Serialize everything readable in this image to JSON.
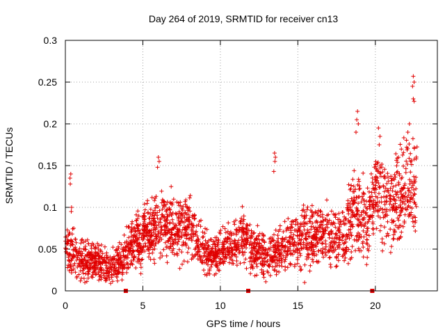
{
  "chart_data": {
    "type": "scatter",
    "title": "Day 264 of 2019, SRMTID for receiver cn13",
    "xlabel": "GPS time / hours",
    "ylabel": "SRMTID / TECUs",
    "xlim": [
      0,
      24
    ],
    "ylim": [
      0,
      0.3
    ],
    "x_ticks": [
      0,
      5,
      10,
      15,
      20
    ],
    "x_tick_labels": [
      "0",
      "5",
      "10",
      "15",
      "20"
    ],
    "y_ticks": [
      0,
      0.05,
      0.1,
      0.15,
      0.2,
      0.25,
      0.3
    ],
    "y_tick_labels": [
      "0",
      "0.05",
      "0.1",
      "0.15",
      "0.2",
      "0.25",
      "0.3"
    ],
    "grid": true,
    "marker": "plus",
    "color": "#e00000",
    "zero_markers_x": [
      3.9,
      11.8,
      19.8
    ],
    "trend": [
      {
        "x": 0.0,
        "y": 0.045,
        "spread": 0.012
      },
      {
        "x": 0.3,
        "y": 0.05,
        "spread": 0.015
      },
      {
        "x": 1.0,
        "y": 0.04,
        "spread": 0.012
      },
      {
        "x": 2.0,
        "y": 0.035,
        "spread": 0.011
      },
      {
        "x": 3.0,
        "y": 0.025,
        "spread": 0.009
      },
      {
        "x": 3.5,
        "y": 0.035,
        "spread": 0.012
      },
      {
        "x": 4.5,
        "y": 0.06,
        "spread": 0.015
      },
      {
        "x": 5.5,
        "y": 0.07,
        "spread": 0.018
      },
      {
        "x": 6.0,
        "y": 0.085,
        "spread": 0.02
      },
      {
        "x": 7.0,
        "y": 0.075,
        "spread": 0.018
      },
      {
        "x": 8.0,
        "y": 0.075,
        "spread": 0.017
      },
      {
        "x": 9.0,
        "y": 0.05,
        "spread": 0.014
      },
      {
        "x": 9.5,
        "y": 0.04,
        "spread": 0.01
      },
      {
        "x": 10.5,
        "y": 0.055,
        "spread": 0.013
      },
      {
        "x": 11.5,
        "y": 0.065,
        "spread": 0.015
      },
      {
        "x": 12.0,
        "y": 0.05,
        "spread": 0.013
      },
      {
        "x": 13.0,
        "y": 0.04,
        "spread": 0.012
      },
      {
        "x": 14.0,
        "y": 0.05,
        "spread": 0.014
      },
      {
        "x": 15.0,
        "y": 0.06,
        "spread": 0.015
      },
      {
        "x": 16.0,
        "y": 0.065,
        "spread": 0.017
      },
      {
        "x": 17.0,
        "y": 0.065,
        "spread": 0.017
      },
      {
        "x": 18.0,
        "y": 0.065,
        "spread": 0.017
      },
      {
        "x": 18.7,
        "y": 0.1,
        "spread": 0.025
      },
      {
        "x": 19.5,
        "y": 0.08,
        "spread": 0.02
      },
      {
        "x": 20.0,
        "y": 0.12,
        "spread": 0.03
      },
      {
        "x": 21.0,
        "y": 0.1,
        "spread": 0.025
      },
      {
        "x": 22.0,
        "y": 0.12,
        "spread": 0.03
      },
      {
        "x": 22.7,
        "y": 0.13,
        "spread": 0.03
      }
    ],
    "spikes": [
      {
        "x": 0.35,
        "y": 0.14
      },
      {
        "x": 0.3,
        "y": 0.135
      },
      {
        "x": 0.32,
        "y": 0.128
      },
      {
        "x": 0.4,
        "y": 0.1
      },
      {
        "x": 0.38,
        "y": 0.095
      },
      {
        "x": 6.0,
        "y": 0.16
      },
      {
        "x": 6.05,
        "y": 0.155
      },
      {
        "x": 5.95,
        "y": 0.148
      },
      {
        "x": 13.5,
        "y": 0.165
      },
      {
        "x": 13.55,
        "y": 0.16
      },
      {
        "x": 13.52,
        "y": 0.155
      },
      {
        "x": 13.45,
        "y": 0.143
      },
      {
        "x": 18.85,
        "y": 0.215
      },
      {
        "x": 18.8,
        "y": 0.205
      },
      {
        "x": 18.9,
        "y": 0.2
      },
      {
        "x": 18.75,
        "y": 0.19
      },
      {
        "x": 20.2,
        "y": 0.195
      },
      {
        "x": 20.3,
        "y": 0.185
      },
      {
        "x": 20.25,
        "y": 0.175
      },
      {
        "x": 22.45,
        "y": 0.257
      },
      {
        "x": 22.5,
        "y": 0.25
      },
      {
        "x": 22.4,
        "y": 0.245
      },
      {
        "x": 22.45,
        "y": 0.23
      },
      {
        "x": 22.5,
        "y": 0.227
      },
      {
        "x": 22.2,
        "y": 0.2
      },
      {
        "x": 22.1,
        "y": 0.19
      }
    ]
  }
}
